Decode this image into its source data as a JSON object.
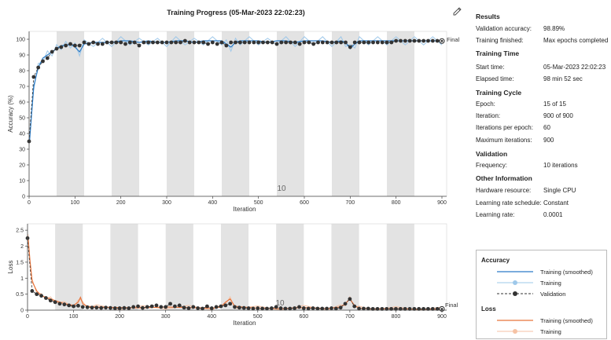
{
  "title": "Training Progress (05-Mar-2023 22:02:23)",
  "accuracy_plot": {
    "ylabel": "Accuracy (%)",
    "xlabel": "Iteration",
    "final_label": "Final",
    "epoch_watermark": "10"
  },
  "loss_plot": {
    "ylabel": "Loss",
    "xlabel": "Iteration",
    "final_label": "Final",
    "epoch_watermark": "10"
  },
  "results": {
    "heading": "Results",
    "rows": [
      {
        "k": "Validation accuracy:",
        "v": "98.89%"
      },
      {
        "k": "Training finished:",
        "v": "Max epochs completed"
      }
    ]
  },
  "training_time": {
    "heading": "Training Time",
    "rows": [
      {
        "k": "Start time:",
        "v": "05-Mar-2023 22:02:23"
      },
      {
        "k": "Elapsed time:",
        "v": "98 min 52 sec"
      }
    ]
  },
  "training_cycle": {
    "heading": "Training Cycle",
    "rows": [
      {
        "k": "Epoch:",
        "v": "15 of 15"
      },
      {
        "k": "Iteration:",
        "v": "900 of 900"
      },
      {
        "k": "Iterations per epoch:",
        "v": "60"
      },
      {
        "k": "Maximum iterations:",
        "v": "900"
      }
    ]
  },
  "validation": {
    "heading": "Validation",
    "rows": [
      {
        "k": "Frequency:",
        "v": "10 iterations"
      }
    ]
  },
  "other_info": {
    "heading": "Other Information",
    "rows": [
      {
        "k": "Hardware resource:",
        "v": "Single CPU"
      },
      {
        "k": "Learning rate schedule:",
        "v": "Constant"
      },
      {
        "k": "Learning rate:",
        "v": "0.0001"
      }
    ]
  },
  "legend": {
    "accuracy_heading": "Accuracy",
    "accuracy_items": [
      "Training (smoothed)",
      "Training",
      "Validation"
    ],
    "loss_heading": "Loss",
    "loss_items": [
      "Training (smoothed)",
      "Training"
    ]
  },
  "colors": {
    "acc_smoothed": "#2b7bc6",
    "acc_raw": "#9ec8ea",
    "loss_smoothed": "#e8743b",
    "loss_raw": "#f6c2a4",
    "validation": "#333333",
    "epoch_band": "#e3e3e3"
  },
  "chart_data": [
    {
      "type": "line",
      "title": "Training Progress (05-Mar-2023 22:02:23)",
      "xlabel": "Iteration",
      "ylabel": "Accuracy (%)",
      "xlim": [
        0,
        900
      ],
      "ylim": [
        0,
        105
      ],
      "xticks": [
        0,
        100,
        200,
        300,
        400,
        500,
        600,
        700,
        800,
        900
      ],
      "yticks": [
        0,
        10,
        20,
        30,
        40,
        50,
        60,
        70,
        80,
        90,
        100
      ],
      "epoch_bands": [
        [
          60,
          120
        ],
        [
          180,
          240
        ],
        [
          300,
          360
        ],
        [
          420,
          480
        ],
        [
          540,
          600
        ],
        [
          660,
          720
        ],
        [
          780,
          840
        ]
      ],
      "series": [
        {
          "name": "Training (smoothed)",
          "x": [
            1,
            10,
            20,
            30,
            40,
            50,
            60,
            70,
            80,
            90,
            100,
            110,
            120,
            140,
            160,
            180,
            200,
            220,
            240,
            260,
            280,
            300,
            320,
            340,
            360,
            380,
            400,
            420,
            430,
            440,
            450,
            460,
            480,
            500,
            520,
            540,
            560,
            580,
            600,
            620,
            640,
            660,
            680,
            690,
            700,
            710,
            720,
            740,
            760,
            780,
            800,
            820,
            840,
            860,
            880,
            900
          ],
          "y": [
            35,
            70,
            82,
            88,
            90,
            92,
            94,
            96,
            96,
            97,
            95,
            92,
            97,
            98,
            98,
            98,
            99,
            99,
            98,
            99,
            98,
            98,
            99,
            99,
            98,
            99,
            99,
            99,
            97,
            95,
            98,
            99,
            99,
            99,
            98,
            99,
            99,
            98,
            99,
            99,
            99,
            98,
            99,
            98,
            94,
            97,
            99,
            99,
            99,
            99,
            99,
            99,
            99,
            99,
            99,
            99
          ]
        },
        {
          "name": "Validation",
          "x": [
            0,
            10,
            20,
            30,
            40,
            50,
            60,
            70,
            80,
            90,
            100,
            110,
            120,
            130,
            140,
            150,
            160,
            170,
            180,
            190,
            200,
            210,
            220,
            230,
            240,
            250,
            260,
            270,
            280,
            290,
            300,
            310,
            320,
            330,
            340,
            350,
            360,
            370,
            380,
            390,
            400,
            410,
            420,
            430,
            440,
            450,
            460,
            470,
            480,
            490,
            500,
            510,
            520,
            530,
            540,
            550,
            560,
            570,
            580,
            590,
            600,
            610,
            620,
            630,
            640,
            650,
            660,
            670,
            680,
            690,
            700,
            710,
            720,
            730,
            740,
            750,
            760,
            770,
            780,
            790,
            800,
            810,
            820,
            830,
            840,
            850,
            860,
            870,
            880,
            890,
            900
          ],
          "y": [
            35,
            76,
            82,
            86,
            88,
            92,
            94,
            95,
            96,
            97,
            96,
            96,
            98,
            97,
            98,
            97,
            97,
            98,
            98,
            98,
            98,
            97,
            98,
            98,
            96,
            98,
            98,
            98,
            98,
            98,
            98,
            98,
            98,
            98,
            99,
            98,
            98,
            98,
            98,
            97,
            98,
            97,
            98,
            96,
            98,
            98,
            98,
            98,
            98,
            98,
            98,
            98,
            98,
            98,
            97,
            98,
            98,
            98,
            98,
            97,
            98,
            98,
            97,
            98,
            98,
            98,
            98,
            98,
            98,
            98,
            95,
            98,
            98,
            98,
            98,
            98,
            98,
            98,
            98,
            98,
            99,
            99,
            99,
            99,
            99,
            99,
            99,
            99,
            99,
            99,
            98.89
          ]
        }
      ]
    },
    {
      "type": "line",
      "xlabel": "Iteration",
      "ylabel": "Loss",
      "xlim": [
        0,
        900
      ],
      "ylim": [
        0,
        2.7
      ],
      "xticks": [
        0,
        100,
        200,
        300,
        400,
        500,
        600,
        700,
        800,
        900
      ],
      "yticks": [
        0,
        0.5,
        1,
        1.5,
        2,
        2.5
      ],
      "epoch_bands": [
        [
          60,
          120
        ],
        [
          180,
          240
        ],
        [
          300,
          360
        ],
        [
          420,
          480
        ],
        [
          540,
          600
        ],
        [
          660,
          720
        ],
        [
          780,
          840
        ]
      ],
      "series": [
        {
          "name": "Training (smoothed)",
          "x": [
            1,
            5,
            10,
            20,
            30,
            40,
            50,
            60,
            80,
            100,
            110,
            115,
            120,
            130,
            150,
            200,
            250,
            300,
            350,
            400,
            420,
            430,
            440,
            450,
            500,
            550,
            600,
            650,
            680,
            690,
            700,
            710,
            720,
            750,
            800,
            850,
            900
          ],
          "y": [
            2.3,
            1.6,
            0.9,
            0.6,
            0.45,
            0.4,
            0.35,
            0.3,
            0.2,
            0.15,
            0.25,
            0.4,
            0.2,
            0.12,
            0.1,
            0.08,
            0.07,
            0.1,
            0.08,
            0.06,
            0.1,
            0.25,
            0.35,
            0.12,
            0.06,
            0.05,
            0.08,
            0.05,
            0.1,
            0.2,
            0.35,
            0.15,
            0.06,
            0.04,
            0.04,
            0.03,
            0.03
          ]
        },
        {
          "name": "Validation",
          "x": [
            0,
            10,
            20,
            30,
            40,
            50,
            60,
            70,
            80,
            90,
            100,
            110,
            120,
            130,
            140,
            150,
            160,
            170,
            180,
            190,
            200,
            210,
            220,
            230,
            240,
            250,
            260,
            270,
            280,
            290,
            300,
            310,
            320,
            330,
            340,
            350,
            360,
            370,
            380,
            390,
            400,
            410,
            420,
            430,
            440,
            450,
            460,
            470,
            480,
            490,
            500,
            510,
            520,
            530,
            540,
            550,
            560,
            570,
            580,
            590,
            600,
            610,
            620,
            630,
            640,
            650,
            660,
            670,
            680,
            690,
            700,
            710,
            720,
            730,
            740,
            750,
            760,
            770,
            780,
            790,
            800,
            810,
            820,
            830,
            840,
            850,
            860,
            870,
            880,
            890,
            900
          ],
          "y": [
            2.25,
            0.6,
            0.5,
            0.45,
            0.38,
            0.3,
            0.25,
            0.2,
            0.18,
            0.15,
            0.12,
            0.14,
            0.1,
            0.09,
            0.08,
            0.08,
            0.07,
            0.08,
            0.07,
            0.06,
            0.06,
            0.07,
            0.06,
            0.1,
            0.12,
            0.07,
            0.1,
            0.12,
            0.15,
            0.1,
            0.1,
            0.2,
            0.12,
            0.15,
            0.08,
            0.06,
            0.1,
            0.06,
            0.05,
            0.12,
            0.06,
            0.1,
            0.12,
            0.15,
            0.2,
            0.1,
            0.08,
            0.07,
            0.06,
            0.05,
            0.06,
            0.05,
            0.05,
            0.06,
            0.1,
            0.06,
            0.05,
            0.05,
            0.06,
            0.1,
            0.06,
            0.05,
            0.06,
            0.05,
            0.05,
            0.05,
            0.06,
            0.05,
            0.08,
            0.2,
            0.35,
            0.12,
            0.05,
            0.05,
            0.05,
            0.04,
            0.04,
            0.04,
            0.04,
            0.04,
            0.04,
            0.04,
            0.04,
            0.04,
            0.04,
            0.04,
            0.04,
            0.04,
            0.04,
            0.04,
            0.04
          ]
        }
      ]
    }
  ]
}
